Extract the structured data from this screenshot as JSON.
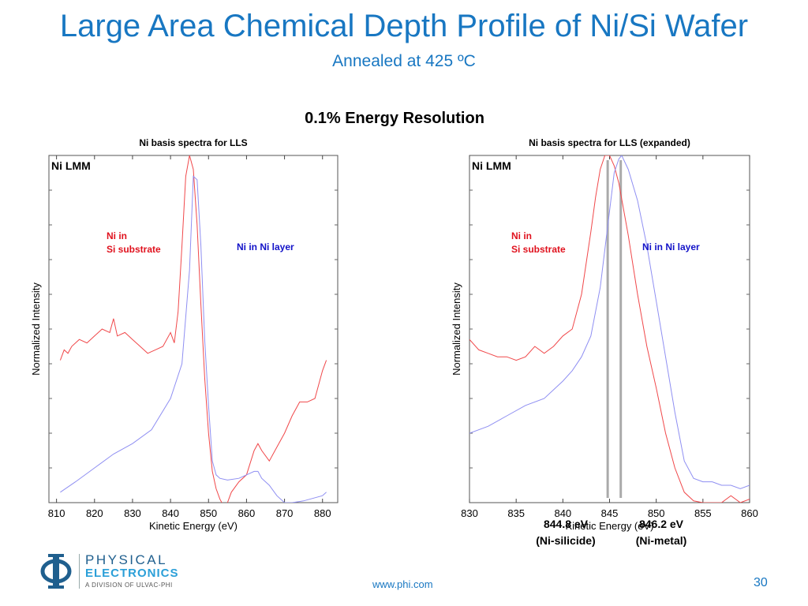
{
  "slide": {
    "title": "Large Area Chemical Depth Profile of Ni/Si Wafer",
    "subtitle": "Annealed at 425 ºC",
    "heading": "0.1% Energy Resolution",
    "footer_url": "www.phi.com",
    "page_number": "30"
  },
  "logo": {
    "line1": "PHYSICAL",
    "line2": "ELECTRONICS",
    "line3": "A DIVISION OF ULVAC-PHI",
    "icon": "phi-symbol-icon",
    "color_primary": "#1f5f8e",
    "color_secondary": "#2b9fd8"
  },
  "colors": {
    "title": "#1877c2",
    "red_series": "#f0484a",
    "blue_series": "#8f8ff2",
    "red_label": "#e0121e",
    "blue_label": "#1212c8",
    "marker_line": "#aaaaaa"
  },
  "chart_data": [
    {
      "type": "line",
      "title": "Ni basis spectra for LLS",
      "xlabel": "Kinetic Energy (eV)",
      "ylabel": "Normalized Intensity",
      "xlim": [
        808,
        884
      ],
      "ylim": [
        0,
        1
      ],
      "xticks": [
        810,
        820,
        830,
        840,
        850,
        860,
        870,
        880
      ],
      "tick_labels": [
        "810",
        "820",
        "830",
        "840",
        "850",
        "860",
        "870",
        "880"
      ],
      "panel_label": "Ni LMM",
      "grid": false,
      "series": [
        {
          "name": "Ni in Si substrate",
          "color": "#f0484a",
          "x": [
            811,
            812,
            813,
            814,
            816,
            818,
            820,
            822,
            824,
            825,
            826,
            828,
            830,
            832,
            834,
            836,
            838,
            840,
            841,
            842,
            843,
            844,
            845,
            846,
            847,
            848,
            849,
            850,
            851,
            852,
            853,
            854,
            855,
            856,
            858,
            860,
            862,
            863,
            864,
            866,
            868,
            870,
            872,
            874,
            876,
            878,
            880,
            881
          ],
          "y": [
            0.41,
            0.44,
            0.43,
            0.45,
            0.47,
            0.46,
            0.48,
            0.5,
            0.49,
            0.53,
            0.48,
            0.49,
            0.47,
            0.45,
            0.43,
            0.44,
            0.45,
            0.49,
            0.46,
            0.55,
            0.74,
            0.94,
            1.0,
            0.96,
            0.8,
            0.57,
            0.36,
            0.2,
            0.09,
            0.04,
            0.01,
            -0.01,
            0.0,
            0.03,
            0.06,
            0.08,
            0.15,
            0.17,
            0.15,
            0.12,
            0.16,
            0.2,
            0.25,
            0.29,
            0.29,
            0.3,
            0.38,
            0.41
          ]
        },
        {
          "name": "Ni in Ni layer",
          "color": "#8f8ff2",
          "x": [
            811,
            815,
            820,
            825,
            830,
            835,
            840,
            843,
            845,
            846,
            847,
            848,
            849,
            850,
            851,
            852,
            853,
            855,
            858,
            860,
            862,
            863,
            864,
            866,
            868,
            870,
            872,
            875,
            880,
            881
          ],
          "y": [
            0.03,
            0.06,
            0.1,
            0.14,
            0.17,
            0.21,
            0.3,
            0.4,
            0.67,
            0.94,
            0.93,
            0.74,
            0.47,
            0.28,
            0.12,
            0.08,
            0.07,
            0.065,
            0.07,
            0.08,
            0.09,
            0.09,
            0.07,
            0.05,
            0.02,
            0.0,
            0.0,
            0.005,
            0.02,
            0.03
          ]
        }
      ],
      "annotations": [
        {
          "lines": [
            "Ni in",
            "Si substrate"
          ],
          "color": "#e0121e"
        },
        {
          "lines": [
            "Ni in Ni layer"
          ],
          "color": "#1212c8"
        }
      ]
    },
    {
      "type": "line",
      "title": "Ni basis spectra for LLS (expanded)",
      "xlabel": "Kinetic Energy (eV)",
      "ylabel": "Normalized Intensity",
      "xlim": [
        830,
        860
      ],
      "ylim": [
        0,
        1
      ],
      "xticks": [
        830,
        835,
        840,
        845,
        850,
        855,
        860
      ],
      "tick_labels": [
        "830",
        "835",
        "840",
        "845",
        "850",
        "855",
        "860"
      ],
      "panel_label": "Ni LMM",
      "grid": false,
      "series": [
        {
          "name": "Ni in Si substrate",
          "color": "#f0484a",
          "x": [
            830,
            831,
            832,
            833,
            834,
            835,
            836,
            837,
            838,
            839,
            840,
            841,
            842,
            843,
            843.5,
            844,
            844.5,
            845,
            845.5,
            846,
            847,
            848,
            849,
            850,
            851,
            852,
            853,
            854,
            855,
            856,
            857,
            858,
            859,
            860
          ],
          "y": [
            0.47,
            0.44,
            0.43,
            0.42,
            0.42,
            0.41,
            0.42,
            0.45,
            0.43,
            0.45,
            0.48,
            0.5,
            0.6,
            0.78,
            0.88,
            0.96,
            1.0,
            1.0,
            0.97,
            0.92,
            0.77,
            0.6,
            0.45,
            0.33,
            0.2,
            0.1,
            0.03,
            0.005,
            0.0,
            0.0,
            0.0,
            0.02,
            0.0,
            0.01
          ]
        },
        {
          "name": "Ni in Ni layer",
          "color": "#8f8ff2",
          "x": [
            830,
            832,
            834,
            836,
            838,
            840,
            841,
            842,
            843,
            844,
            845,
            845.5,
            846,
            846.3,
            847,
            848,
            849,
            850,
            851,
            852,
            853,
            854,
            855,
            856,
            857,
            858,
            859,
            860
          ],
          "y": [
            0.2,
            0.22,
            0.25,
            0.28,
            0.3,
            0.35,
            0.38,
            0.42,
            0.48,
            0.62,
            0.84,
            0.95,
            0.99,
            1.0,
            0.96,
            0.87,
            0.74,
            0.58,
            0.42,
            0.26,
            0.12,
            0.07,
            0.06,
            0.06,
            0.05,
            0.05,
            0.04,
            0.05
          ]
        }
      ],
      "markers": [
        {
          "x": 844.8,
          "lines": [
            "844.8 eV",
            "(Ni-silicide)"
          ]
        },
        {
          "x": 846.2,
          "lines": [
            "846.2 eV",
            "(Ni-metal)"
          ]
        }
      ],
      "annotations": [
        {
          "lines": [
            "Ni in",
            "Si substrate"
          ],
          "color": "#e0121e"
        },
        {
          "lines": [
            "Ni in Ni layer"
          ],
          "color": "#1212c8"
        }
      ]
    }
  ]
}
